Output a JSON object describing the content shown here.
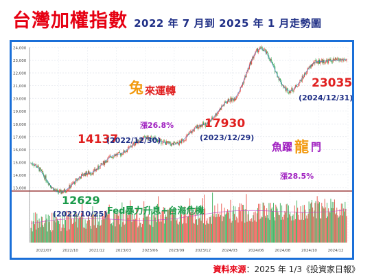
{
  "header": {
    "title": "台灣加權指數",
    "subtitle": "2022 年 7 月到 2025 年 1 月走勢圖"
  },
  "source": {
    "label": "資料來源",
    "text": "：2025 年 1/3《投資家日報》"
  },
  "annotations": {
    "low_value": "12629",
    "low_date": "(2022/10/25)",
    "p1_value": "14137",
    "p1_date": "(2022/12/30)",
    "p2_value": "17930",
    "p2_date": "(2023/12/29)",
    "p3_value": "23035",
    "p3_date": "(2024/12/31)",
    "phase1_word1": "兔",
    "phase1_word2": "來運轉",
    "phase1_gain": "漲26.8%",
    "phase2_word1": "魚躍",
    "phase2_word2": "龍",
    "phase2_word3": "門",
    "phase2_gain": "漲28.5%",
    "fed_text": "Fed暴力升息+台海危機"
  },
  "colors": {
    "title_red": "#e60012",
    "subtitle_navy": "#1f2f86",
    "frame_blue": "#1a6fd8",
    "up": "#e8463c",
    "down": "#2fa84f",
    "ma": "#3a7bd5"
  },
  "chart_data": {
    "type": "line",
    "title": "台灣加權指數",
    "ylim": [
      13000,
      24000
    ],
    "yticks": [
      "24,000",
      "23,000",
      "22,000",
      "21,000",
      "20,000",
      "19,000",
      "18,000",
      "17,000",
      "16,000",
      "15,000",
      "14,000",
      "13,000"
    ],
    "x": [
      "2022/07",
      "2022/10",
      "2022/12",
      "2023/03",
      "2023/06",
      "2023/09",
      "2023/12",
      "2024/03",
      "2024/06",
      "2024/08",
      "2024/10",
      "2024/12"
    ],
    "series": [
      {
        "values": [
          14900,
          12629,
          14137,
          15600,
          16900,
          16400,
          17930,
          19900,
          23900,
          20600,
          22900,
          23035
        ]
      }
    ],
    "key_points": [
      {
        "date": "2022/10/25",
        "value": 12629
      },
      {
        "date": "2022/12/30",
        "value": 14137
      },
      {
        "date": "2023/12/29",
        "value": 17930
      },
      {
        "date": "2024/12/31",
        "value": 23035
      }
    ]
  }
}
